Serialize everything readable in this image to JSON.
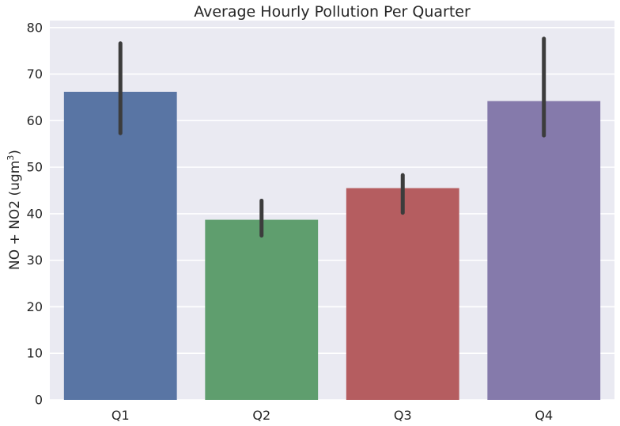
{
  "chart_data": {
    "type": "bar",
    "title": "Average Hourly Pollution Per Quarter",
    "xlabel": "",
    "ylabel": "NO + NO2 (ugm",
    "ylabel_superscript": "3",
    "ylabel_suffix": ")",
    "categories": [
      "Q1",
      "Q2",
      "Q3",
      "Q4"
    ],
    "values": [
      66.2,
      38.7,
      45.5,
      64.2
    ],
    "error_low": [
      57.3,
      35.3,
      40.2,
      56.8
    ],
    "error_high": [
      76.6,
      42.8,
      48.3,
      77.6
    ],
    "ylim": [
      0,
      81.5
    ],
    "yticks": [
      0,
      10,
      20,
      30,
      40,
      50,
      60,
      70,
      80
    ],
    "grid": true,
    "legend": "none",
    "colors": [
      "#5975A4",
      "#5F9E6E",
      "#B55D60",
      "#857AAB"
    ],
    "error_color": "#3c3c3c",
    "background": "#EAEAF2"
  }
}
